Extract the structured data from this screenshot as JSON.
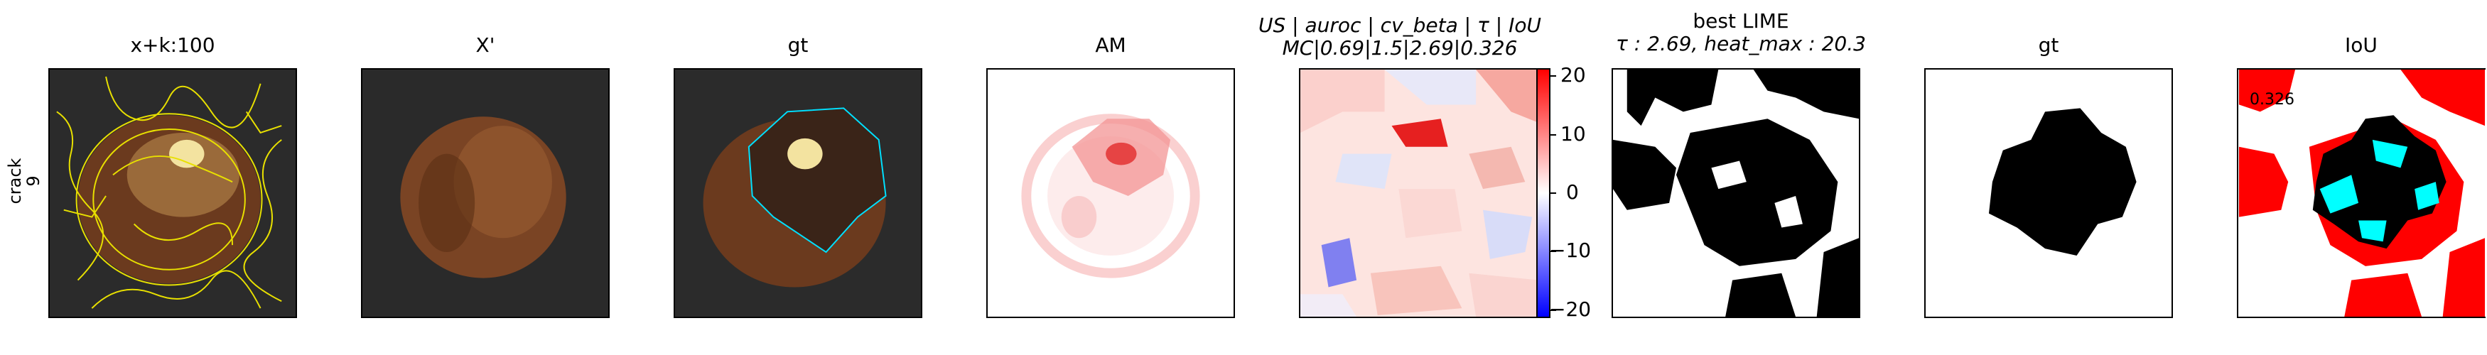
{
  "row_label": {
    "line1": "crack",
    "line2": "9"
  },
  "panels": {
    "p1": {
      "title": "x+k:100"
    },
    "p2": {
      "title": "X'"
    },
    "p3": {
      "title": "gt"
    },
    "p4": {
      "title": "AM"
    },
    "p5": {
      "title_line1": "US | auroc | cv_beta | τ | IoU",
      "title_line2": "MC|0.69|1.5|2.69|0.326"
    },
    "p6": {
      "title_line1": "best LIME",
      "title_line2": "τ : 2.69, heat_max : 20.3"
    },
    "p7": {
      "title": "gt"
    },
    "p8": {
      "title": "IoU",
      "value": "0.326"
    }
  },
  "colorbar": {
    "ticks": [
      "20",
      "10",
      "0",
      "−10",
      "−20"
    ]
  },
  "colors": {
    "contour": "#e8e000",
    "gt_outline": "#00e0ff",
    "iou_fp": "#ff0000",
    "iou_tp": "#00ffff"
  }
}
